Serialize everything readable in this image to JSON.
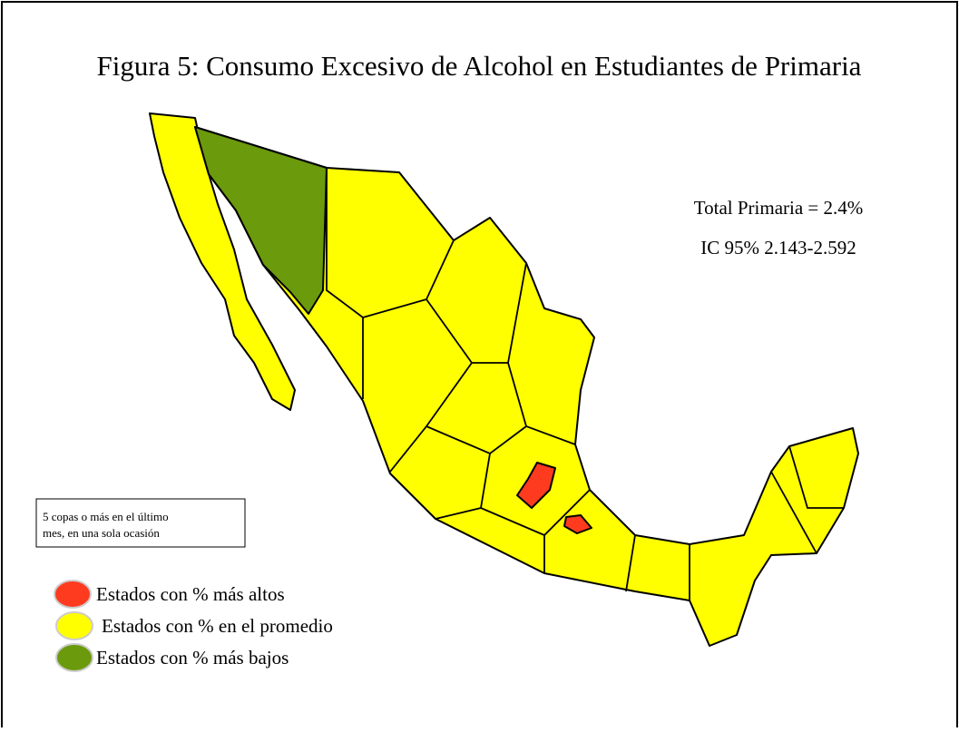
{
  "title": "Figura 5: Consumo Excesivo de Alcohol en Estudiantes de Primaria",
  "stats": [
    "Total Primaria = 2.4%",
    "IC 95%  2.143-2.592"
  ],
  "note": [
    "5 copas o más en el último",
    "mes, en una sola ocasión"
  ],
  "legend": [
    {
      "label": "Estados con % más altos",
      "color": "#ff3b1f"
    },
    {
      "label": "Estados con % en el promedio",
      "color": "#ffff00"
    },
    {
      "label": "Estados con % más bajos",
      "color": "#6b9a0c"
    }
  ]
}
